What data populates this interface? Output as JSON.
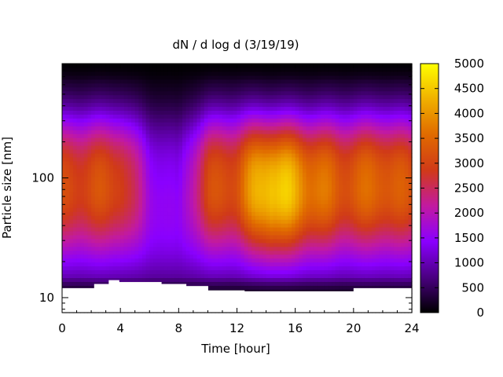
{
  "chart_data": {
    "type": "heatmap",
    "title": "dN / d log d (3/19/19)",
    "xlabel": "Time [hour]",
    "ylabel": "Particle size [nm]",
    "xlim": [
      0,
      24
    ],
    "ylim_nm": [
      7.5,
      900
    ],
    "y_scale": "log",
    "x_ticks": [
      0,
      4,
      8,
      12,
      16,
      20,
      24
    ],
    "y_ticks": [
      10,
      100
    ],
    "colorbar": {
      "range": [
        0,
        5000
      ],
      "ticks": [
        0,
        500,
        1000,
        1500,
        2000,
        2500,
        3000,
        3500,
        4000,
        4500,
        5000
      ],
      "palette": [
        "#000000",
        "#4b0082",
        "#8a00ff",
        "#c21aa0",
        "#d03a18",
        "#e06a00",
        "#f0b000",
        "#ffff00"
      ]
    },
    "grid": false,
    "intensity_by_time": [
      {
        "hour": 0,
        "peak_value": 2900,
        "mode_diameter_nm": 100
      },
      {
        "hour": 2,
        "peak_value": 3000,
        "mode_diameter_nm": 100
      },
      {
        "hour": 4,
        "peak_value": 3000,
        "mode_diameter_nm": 100
      },
      {
        "hour": 6,
        "peak_value": 1500,
        "mode_diameter_nm": 100
      },
      {
        "hour": 8,
        "peak_value": 1200,
        "mode_diameter_nm": 100
      },
      {
        "hour": 10,
        "peak_value": 2900,
        "mode_diameter_nm": 100
      },
      {
        "hour": 12,
        "peak_value": 3200,
        "mode_diameter_nm": 100
      },
      {
        "hour": 14.3,
        "peak_value": 4600,
        "mode_diameter_nm": 90
      },
      {
        "hour": 17,
        "peak_value": 3700,
        "mode_diameter_nm": 95
      },
      {
        "hour": 19,
        "peak_value": 3200,
        "mode_diameter_nm": 100
      },
      {
        "hour": 22,
        "peak_value": 3400,
        "mode_diameter_nm": 100
      },
      {
        "hour": 24,
        "peak_value": 3000,
        "mode_diameter_nm": 100
      }
    ],
    "lower_detection_limit_nm": [
      {
        "hour": 0,
        "d": 12
      },
      {
        "hour": 2.2,
        "d": 13
      },
      {
        "hour": 3.2,
        "d": 14
      },
      {
        "hour": 3.9,
        "d": 13.5
      },
      {
        "hour": 6.8,
        "d": 13
      },
      {
        "hour": 8.5,
        "d": 12.5
      },
      {
        "hour": 10,
        "d": 11.5
      },
      {
        "hour": 12.5,
        "d": 11.3
      },
      {
        "hour": 20,
        "d": 12
      }
    ]
  }
}
